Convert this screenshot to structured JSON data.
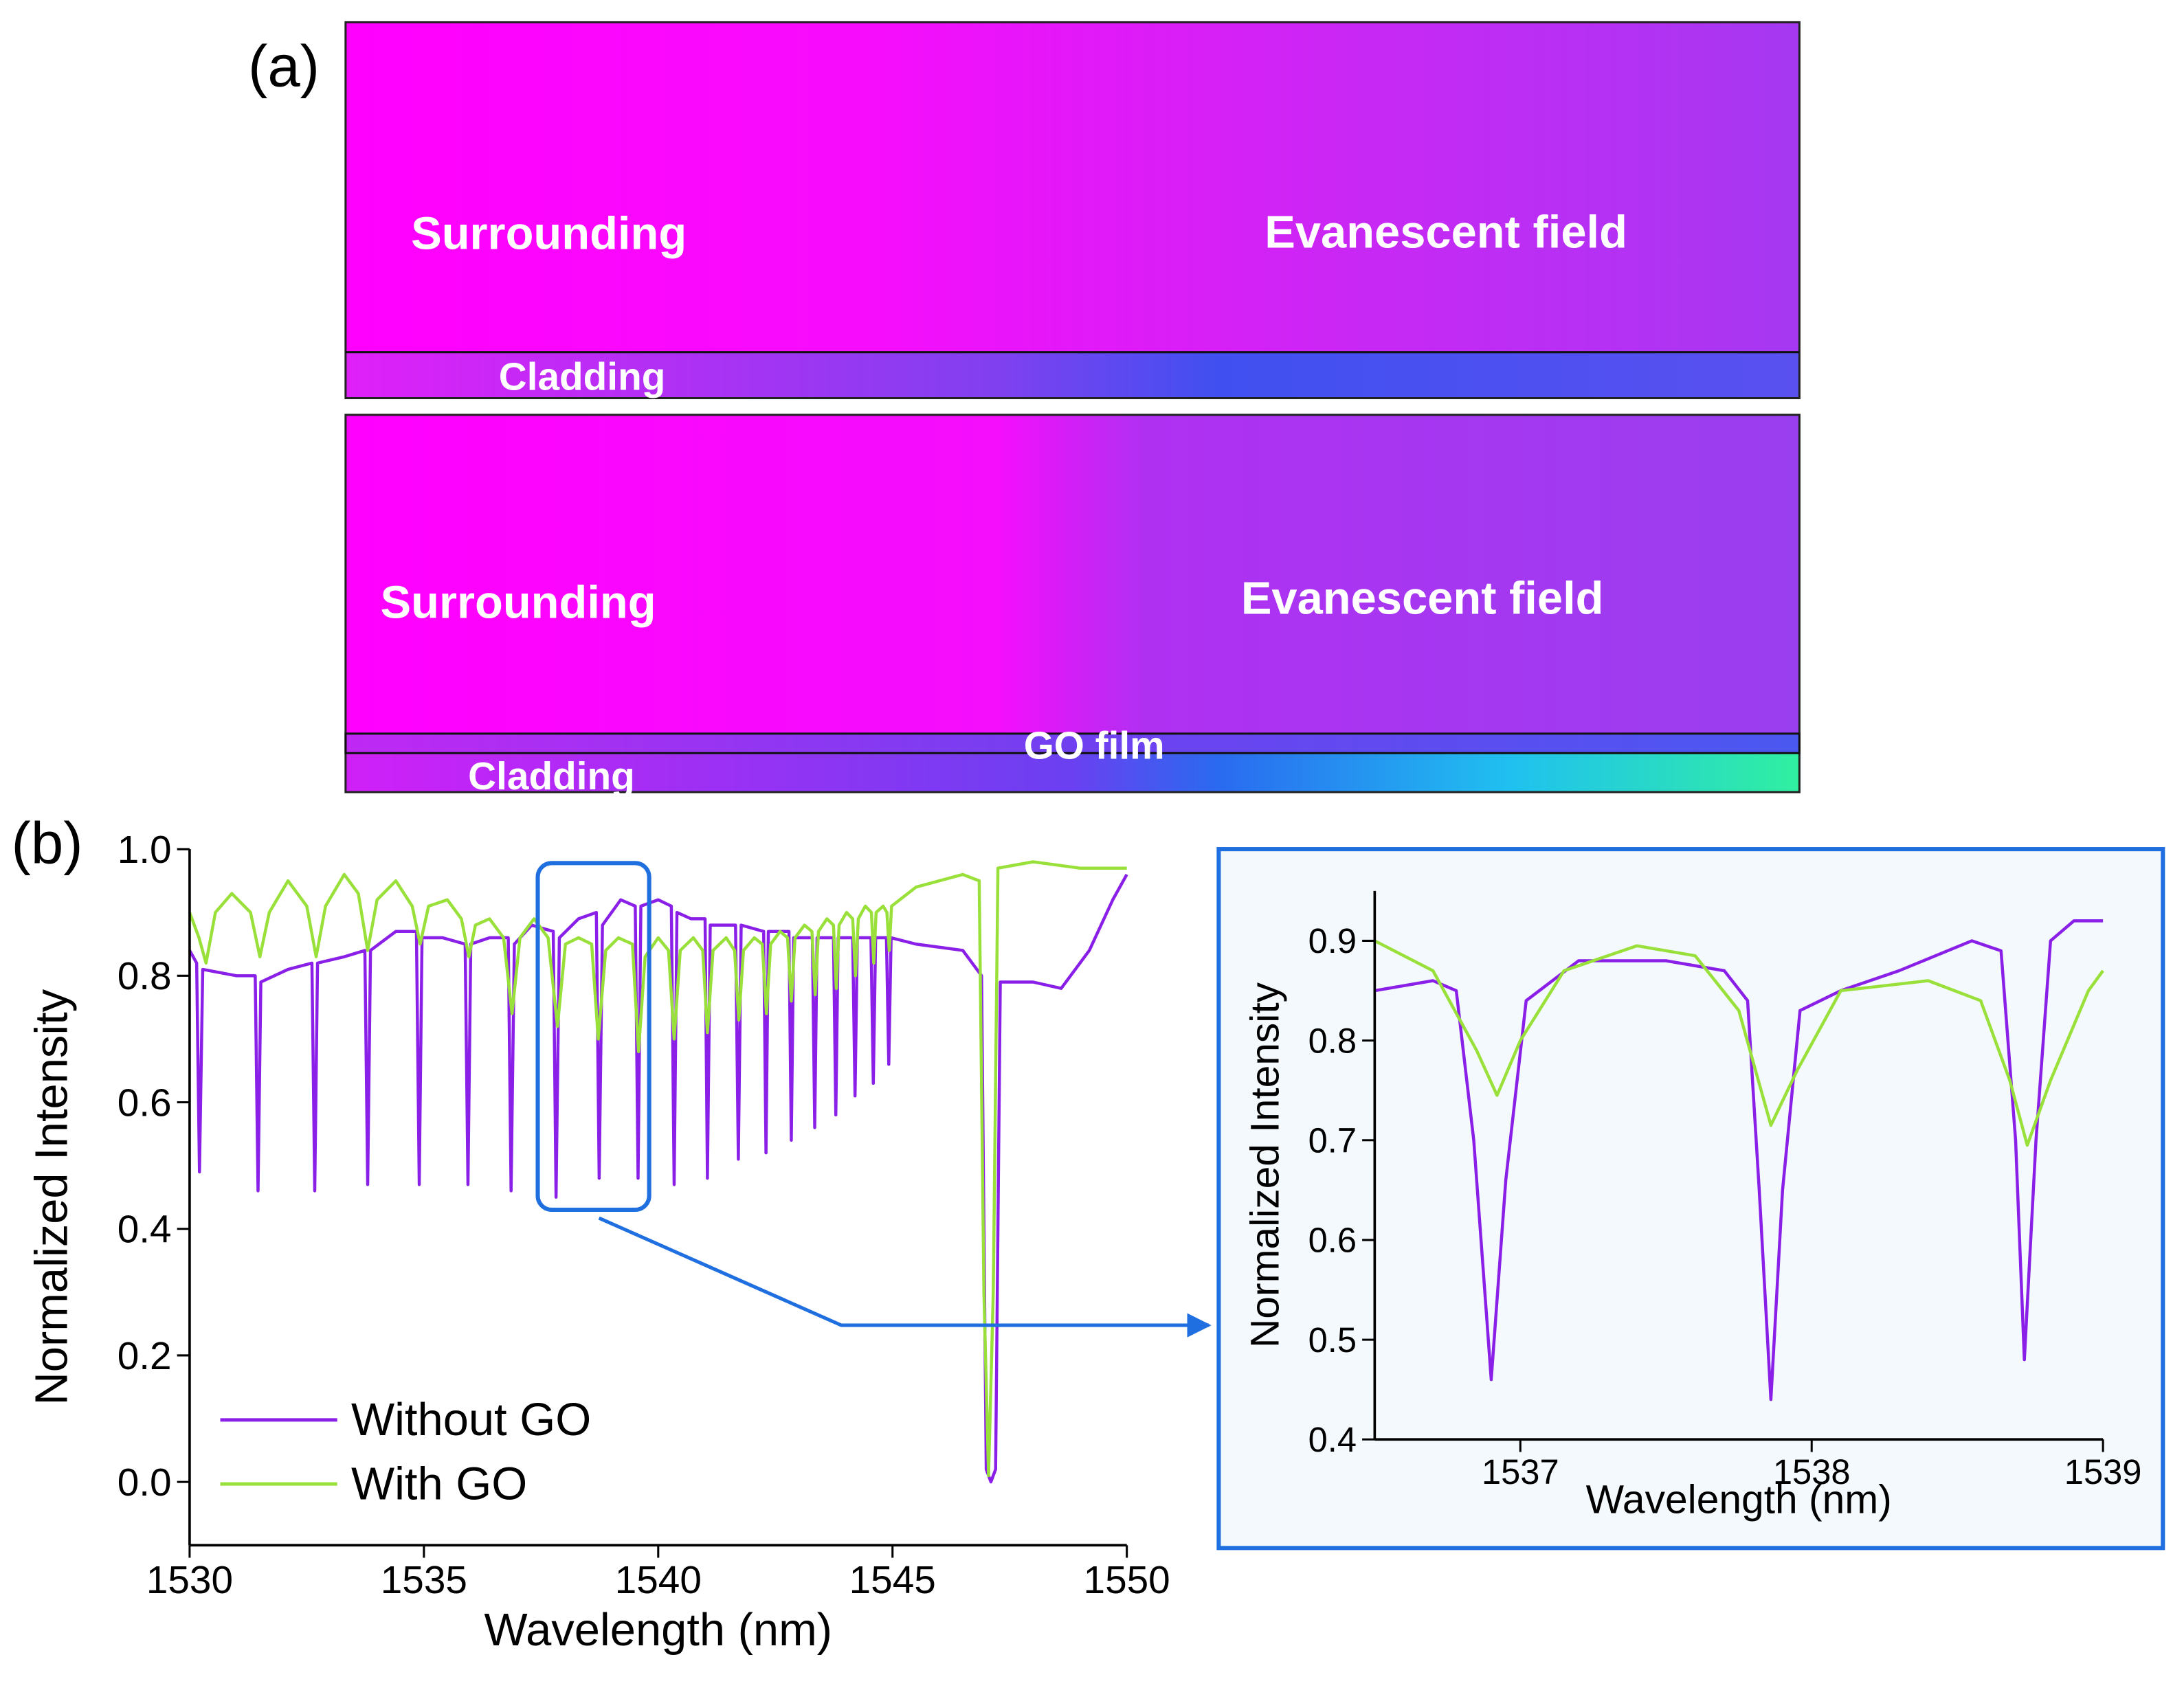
{
  "figure": {
    "panel_a_label": "(a)",
    "panel_b_label": "(b)",
    "sim_top": {
      "surrounding": "Surrounding",
      "evanescent": "Evanescent field",
      "cladding": "Cladding"
    },
    "sim_bottom": {
      "surrounding": "Surrounding",
      "evanescent": "Evanescent field",
      "go_film": "GO film",
      "cladding": "Cladding"
    }
  },
  "chart_data": [
    {
      "type": "line",
      "xlabel": "Wavelength (nm)",
      "ylabel": "Normalized Intensity",
      "xlim": [
        1530,
        1550
      ],
      "xticks": [
        1530,
        1535,
        1540,
        1545,
        1550
      ],
      "ylim": [
        -0.1,
        1.0
      ],
      "yticks": [
        {
          "value": 0,
          "label": "0.0"
        },
        0.2,
        0.4,
        0.6,
        0.8,
        {
          "value": 1,
          "label": "1.0"
        }
      ],
      "legend": "lower left",
      "series": [
        {
          "name": "Without GO",
          "color": "#8a1fe8",
          "x": [
            1530.0,
            1530.15,
            1530.21,
            1530.28,
            1531.0,
            1531.4,
            1531.46,
            1531.52,
            1532.1,
            1532.61,
            1532.67,
            1532.73,
            1533.3,
            1533.74,
            1533.8,
            1533.86,
            1534.4,
            1534.84,
            1534.9,
            1534.96,
            1535.4,
            1535.88,
            1535.94,
            1536.0,
            1536.4,
            1536.8,
            1536.86,
            1536.93,
            1537.3,
            1537.76,
            1537.82,
            1537.89,
            1538.3,
            1538.68,
            1538.74,
            1538.81,
            1539.2,
            1539.51,
            1539.57,
            1539.63,
            1540.0,
            1540.28,
            1540.34,
            1540.4,
            1540.7,
            1541.0,
            1541.05,
            1541.11,
            1541.65,
            1541.71,
            1541.77,
            1542.25,
            1542.3,
            1542.35,
            1542.79,
            1542.84,
            1542.89,
            1543.29,
            1543.34,
            1543.39,
            1543.74,
            1543.79,
            1543.84,
            1544.15,
            1544.2,
            1544.25,
            1544.54,
            1544.59,
            1544.64,
            1544.87,
            1544.92,
            1544.97,
            1545.5,
            1546.5,
            1546.9,
            1547.0,
            1547.1,
            1547.2,
            1547.3,
            1548.0,
            1548.6,
            1549.2,
            1549.7,
            1550.0
          ],
          "values": [
            0.84,
            0.82,
            0.49,
            0.81,
            0.8,
            0.8,
            0.46,
            0.79,
            0.81,
            0.82,
            0.46,
            0.82,
            0.83,
            0.84,
            0.47,
            0.84,
            0.87,
            0.87,
            0.47,
            0.86,
            0.86,
            0.85,
            0.47,
            0.85,
            0.86,
            0.86,
            0.46,
            0.85,
            0.88,
            0.87,
            0.45,
            0.86,
            0.89,
            0.9,
            0.48,
            0.88,
            0.92,
            0.91,
            0.48,
            0.91,
            0.92,
            0.91,
            0.47,
            0.9,
            0.89,
            0.89,
            0.48,
            0.88,
            0.88,
            0.51,
            0.88,
            0.87,
            0.52,
            0.87,
            0.87,
            0.54,
            0.86,
            0.86,
            0.56,
            0.86,
            0.86,
            0.58,
            0.86,
            0.86,
            0.61,
            0.86,
            0.86,
            0.63,
            0.86,
            0.86,
            0.66,
            0.86,
            0.85,
            0.84,
            0.8,
            0.02,
            0.0,
            0.02,
            0.79,
            0.79,
            0.78,
            0.84,
            0.92,
            0.96
          ]
        },
        {
          "name": "With GO",
          "color": "#9ae03a",
          "x": [
            1530.0,
            1530.2,
            1530.35,
            1530.55,
            1530.9,
            1531.3,
            1531.5,
            1531.7,
            1532.1,
            1532.5,
            1532.7,
            1532.9,
            1533.3,
            1533.6,
            1533.8,
            1534.0,
            1534.4,
            1534.75,
            1534.92,
            1535.1,
            1535.5,
            1535.8,
            1535.96,
            1536.1,
            1536.4,
            1536.7,
            1536.88,
            1537.05,
            1537.35,
            1537.65,
            1537.85,
            1538.02,
            1538.3,
            1538.58,
            1538.72,
            1538.88,
            1539.15,
            1539.45,
            1539.58,
            1539.72,
            1540.0,
            1540.22,
            1540.34,
            1540.47,
            1540.75,
            1540.95,
            1541.05,
            1541.17,
            1541.45,
            1541.63,
            1541.72,
            1541.82,
            1542.05,
            1542.22,
            1542.31,
            1542.4,
            1542.6,
            1542.76,
            1542.84,
            1542.92,
            1543.12,
            1543.28,
            1543.35,
            1543.42,
            1543.6,
            1543.74,
            1543.8,
            1543.86,
            1544.02,
            1544.15,
            1544.21,
            1544.27,
            1544.42,
            1544.55,
            1544.6,
            1544.65,
            1544.8,
            1544.88,
            1544.93,
            1544.98,
            1545.5,
            1546.5,
            1546.85,
            1546.95,
            1547.05,
            1547.15,
            1547.25,
            1548.0,
            1549.0,
            1550.0
          ],
          "values": [
            0.9,
            0.86,
            0.82,
            0.9,
            0.93,
            0.9,
            0.83,
            0.9,
            0.95,
            0.91,
            0.83,
            0.91,
            0.96,
            0.93,
            0.84,
            0.92,
            0.95,
            0.91,
            0.85,
            0.91,
            0.92,
            0.89,
            0.83,
            0.88,
            0.89,
            0.86,
            0.74,
            0.86,
            0.89,
            0.86,
            0.72,
            0.85,
            0.86,
            0.85,
            0.7,
            0.84,
            0.86,
            0.85,
            0.68,
            0.83,
            0.86,
            0.84,
            0.7,
            0.84,
            0.86,
            0.84,
            0.71,
            0.84,
            0.86,
            0.84,
            0.73,
            0.84,
            0.86,
            0.85,
            0.74,
            0.85,
            0.87,
            0.86,
            0.76,
            0.86,
            0.88,
            0.87,
            0.77,
            0.87,
            0.89,
            0.88,
            0.78,
            0.88,
            0.9,
            0.89,
            0.8,
            0.89,
            0.91,
            0.9,
            0.82,
            0.9,
            0.91,
            0.9,
            0.84,
            0.91,
            0.94,
            0.96,
            0.95,
            0.3,
            0.01,
            0.3,
            0.97,
            0.98,
            0.97,
            0.97
          ]
        }
      ]
    },
    {
      "type": "line",
      "xlabel": "Wavelength (nm)",
      "ylabel": "Normalized Intensity",
      "xlim": [
        1536.5,
        1539
      ],
      "xticks": [
        1537,
        1538,
        1539
      ],
      "ylim": [
        0.4,
        0.95
      ],
      "yticks": [
        0.4,
        0.5,
        0.6,
        0.7,
        0.8,
        0.9
      ],
      "series": [
        {
          "color": "#8a1fe8",
          "x": [
            1536.5,
            1536.7,
            1536.78,
            1536.84,
            1536.9,
            1536.95,
            1537.02,
            1537.2,
            1537.5,
            1537.7,
            1537.78,
            1537.82,
            1537.86,
            1537.9,
            1537.96,
            1538.1,
            1538.3,
            1538.55,
            1538.65,
            1538.7,
            1538.73,
            1538.77,
            1538.82,
            1538.9,
            1539.0
          ],
          "values": [
            0.85,
            0.86,
            0.85,
            0.7,
            0.46,
            0.66,
            0.84,
            0.88,
            0.88,
            0.87,
            0.84,
            0.65,
            0.44,
            0.65,
            0.83,
            0.85,
            0.87,
            0.9,
            0.89,
            0.7,
            0.48,
            0.7,
            0.9,
            0.92,
            0.92
          ]
        },
        {
          "color": "#9ae03a",
          "x": [
            1536.5,
            1536.7,
            1536.85,
            1536.92,
            1537.0,
            1537.15,
            1537.4,
            1537.6,
            1537.75,
            1537.86,
            1537.95,
            1538.1,
            1538.4,
            1538.58,
            1538.68,
            1538.74,
            1538.82,
            1538.95,
            1539.0
          ],
          "values": [
            0.9,
            0.87,
            0.79,
            0.745,
            0.8,
            0.87,
            0.895,
            0.885,
            0.83,
            0.715,
            0.77,
            0.85,
            0.86,
            0.84,
            0.76,
            0.695,
            0.76,
            0.85,
            0.87
          ]
        }
      ]
    }
  ]
}
